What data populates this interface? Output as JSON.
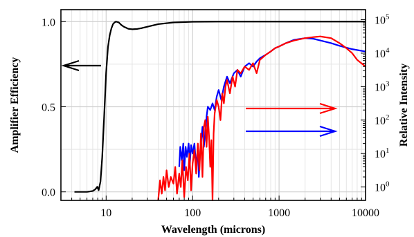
{
  "chart_data": {
    "type": "line",
    "xlabel": "Wavelength (microns)",
    "ylabel_left": "Amplifier Efficiency",
    "ylabel_right": "Relative Intensity",
    "xscale": "log",
    "xlim": [
      3,
      10000
    ],
    "ylim_left": [
      -0.05,
      1.07
    ],
    "ylim_right_log10": [
      -0.4,
      5.3
    ],
    "x_tick_labels": [
      "10",
      "100",
      "1000",
      "10000"
    ],
    "y_left_tick_labels": [
      "0.0",
      "0.5",
      "1.0"
    ],
    "y_right_tick_labels": [
      {
        "base": "10",
        "exp": "0"
      },
      {
        "base": "10",
        "exp": "1"
      },
      {
        "base": "10",
        "exp": "2"
      },
      {
        "base": "10",
        "exp": "3"
      },
      {
        "base": "10",
        "exp": "4"
      },
      {
        "base": "10",
        "exp": "5"
      }
    ],
    "grid": true,
    "colors": {
      "efficiency": "#000000",
      "red": "#ff0000",
      "blue": "#0000ff"
    },
    "series": [
      {
        "axis": "left",
        "color": "#000000",
        "x": [
          4.3,
          6,
          7,
          7.5,
          7.9,
          8.2,
          8.6,
          9,
          9.5,
          10,
          10.5,
          11,
          11.5,
          12,
          12.5,
          13,
          14,
          15,
          16,
          18,
          20,
          23,
          26,
          30,
          40,
          60,
          100,
          200,
          1000,
          10000
        ],
        "y": [
          0.0,
          0.0,
          0.005,
          0.015,
          0.03,
          0.01,
          0.06,
          0.2,
          0.45,
          0.7,
          0.85,
          0.92,
          0.96,
          0.985,
          0.995,
          1.0,
          0.995,
          0.98,
          0.97,
          0.958,
          0.955,
          0.957,
          0.962,
          0.97,
          0.985,
          0.995,
          0.999,
          1.0,
          1.0,
          1.0
        ]
      },
      {
        "axis": "right",
        "color": "#0000ff",
        "x": [
          70,
          72,
          75,
          78,
          80,
          83,
          86,
          90,
          93,
          96,
          100,
          105,
          110,
          115,
          118,
          122,
          126,
          130,
          135,
          140,
          145,
          150,
          160,
          170,
          180,
          190,
          200,
          215,
          230,
          250,
          270,
          300,
          330,
          360,
          400,
          450,
          500,
          550,
          600,
          700,
          800,
          900,
          1000,
          1200,
          1500,
          2000,
          2500,
          3000,
          4000,
          5000,
          7000,
          10000
        ],
        "y_log10": [
          0.6,
          1.2,
          0.8,
          1.3,
          0.5,
          1.2,
          0.9,
          1.3,
          0.7,
          1.25,
          1.0,
          1.3,
          0.6,
          1.2,
          0.3,
          1.0,
          1.4,
          1.8,
          1.2,
          1.6,
          2.1,
          2.4,
          2.3,
          2.5,
          2.3,
          2.7,
          2.9,
          2.6,
          3.0,
          3.3,
          3.1,
          3.4,
          3.5,
          3.3,
          3.6,
          3.7,
          3.6,
          3.75,
          3.85,
          3.95,
          4.05,
          4.15,
          4.2,
          4.3,
          4.4,
          4.45,
          4.43,
          4.38,
          4.3,
          4.22,
          4.12,
          4.05
        ]
      },
      {
        "axis": "right",
        "color": "#ff0000",
        "x": [
          40,
          42,
          44,
          46,
          48,
          50,
          53,
          56,
          60,
          63,
          66,
          70,
          73,
          76,
          80,
          84,
          88,
          92,
          96,
          100,
          105,
          110,
          115,
          120,
          125,
          130,
          135,
          140,
          145,
          150,
          155,
          160,
          165,
          170,
          175,
          180,
          190,
          200,
          210,
          220,
          230,
          240,
          250,
          270,
          290,
          310,
          330,
          360,
          400,
          450,
          500,
          550,
          600,
          700,
          800,
          900,
          1000,
          1200,
          1500,
          2000,
          2500,
          3000,
          4000,
          5000,
          6000,
          7000,
          8000,
          10000
        ],
        "y_log10": [
          -0.4,
          0.2,
          -0.2,
          0.3,
          -0.1,
          0.5,
          0.0,
          0.3,
          0.1,
          0.6,
          -0.2,
          0.4,
          0.0,
          0.8,
          -0.3,
          0.6,
          0.2,
          1.0,
          -0.1,
          0.7,
          1.1,
          0.4,
          1.3,
          0.5,
          1.6,
          0.3,
          1.8,
          2.0,
          1.2,
          2.1,
          1.5,
          0.6,
          1.4,
          -0.4,
          1.6,
          2.2,
          2.6,
          2.4,
          2.0,
          2.8,
          2.5,
          3.0,
          3.2,
          2.8,
          3.3,
          3.0,
          3.5,
          3.4,
          3.6,
          3.5,
          3.7,
          3.4,
          3.8,
          3.95,
          4.05,
          4.15,
          4.2,
          4.3,
          4.38,
          4.45,
          4.48,
          4.5,
          4.45,
          4.3,
          4.15,
          4.0,
          3.8,
          3.6
        ]
      }
    ]
  }
}
